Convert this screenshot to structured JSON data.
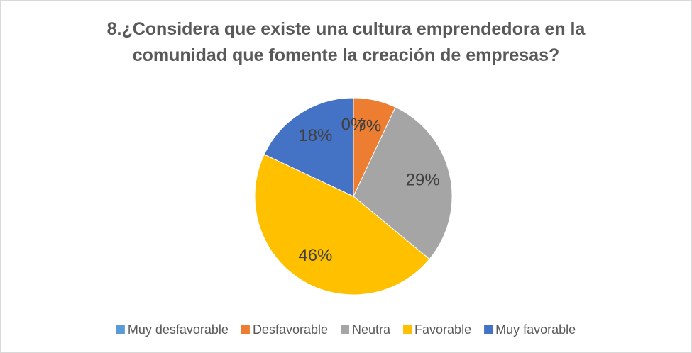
{
  "chart_data": {
    "type": "pie",
    "title": "8.¿Considera que existe una cultura emprendedora en la comunidad que fomente la creación de empresas?",
    "categories": [
      "Muy desfavorable",
      "Desfavorable",
      "Neutra",
      "Favorable",
      "Muy favorable"
    ],
    "values": [
      0,
      7,
      29,
      46,
      18
    ],
    "value_labels": [
      "0%",
      "7%",
      "29%",
      "46%",
      "18%"
    ],
    "colors": [
      "#5b9bd5",
      "#ed7d31",
      "#a5a5a5",
      "#ffc000",
      "#4472c4"
    ],
    "legend": "bottom"
  }
}
